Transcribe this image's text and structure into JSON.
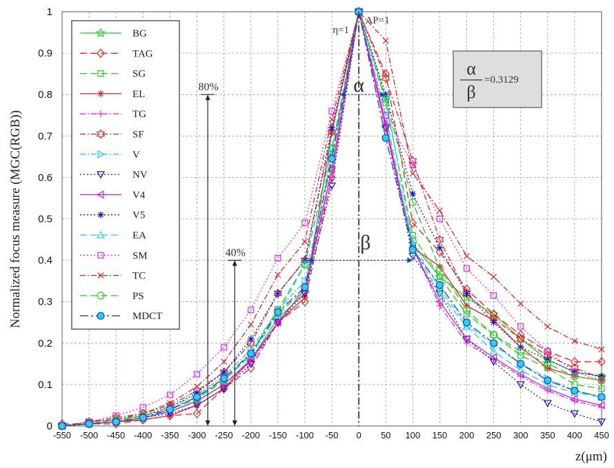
{
  "chart_data": {
    "type": "line",
    "xlabel": "z(μm)",
    "ylabel": "Normalized focus measure (MGC(RGB))",
    "xlim": [
      -550,
      450
    ],
    "ylim": [
      0,
      1
    ],
    "x_ticks": [
      "-550",
      "-500",
      "-450",
      "-400",
      "-350",
      "-300",
      "-250",
      "-200",
      "-150",
      "-100",
      "-50",
      "0",
      "50",
      "100",
      "150",
      "200",
      "250",
      "300",
      "350",
      "400",
      "450"
    ],
    "y_ticks": [
      "0",
      "0.1",
      "0.2",
      "0.3",
      "0.4",
      "0.5",
      "0.6",
      "0.7",
      "0.8",
      "0.9",
      "1"
    ],
    "grid": true,
    "legend_position": "top-left",
    "x": [
      -550,
      -500,
      -450,
      -400,
      -350,
      -300,
      -250,
      -200,
      -150,
      -100,
      -50,
      0,
      50,
      100,
      150,
      200,
      250,
      300,
      350,
      400,
      450
    ],
    "series": [
      {
        "name": "BG",
        "color": "#22cc22",
        "dash": "solid",
        "marker": "star",
        "values": [
          0,
          0.005,
          0.01,
          0.02,
          0.035,
          0.06,
          0.1,
          0.16,
          0.26,
          0.32,
          0.62,
          1,
          0.72,
          0.44,
          0.36,
          0.31,
          0.27,
          0.21,
          0.16,
          0.13,
          0.12
        ]
      },
      {
        "name": "TAG",
        "color": "#ee2222",
        "dash": "10,5",
        "marker": "diamond",
        "values": [
          0.005,
          0.005,
          0.005,
          0.015,
          0.025,
          0.03,
          0.09,
          0.14,
          0.25,
          0.3,
          0.6,
          1,
          0.85,
          0.49,
          0.42,
          0.33,
          0.27,
          0.22,
          0.18,
          0.155,
          0.155
        ]
      },
      {
        "name": "SG",
        "color": "#22cc22",
        "dash": "10,5",
        "marker": "square",
        "values": [
          0,
          0.005,
          0.01,
          0.025,
          0.04,
          0.07,
          0.11,
          0.17,
          0.27,
          0.33,
          0.65,
          1,
          0.78,
          0.46,
          0.36,
          0.27,
          0.22,
          0.17,
          0.14,
          0.1,
          0.09
        ]
      },
      {
        "name": "EL",
        "color": "#dd2222",
        "dash": "solid",
        "marker": "asterisk",
        "values": [
          0,
          0.005,
          0.01,
          0.015,
          0.025,
          0.05,
          0.09,
          0.16,
          0.25,
          0.31,
          0.71,
          1,
          0.73,
          0.43,
          0.385,
          0.29,
          0.255,
          0.19,
          0.14,
          0.12,
          0.11
        ]
      },
      {
        "name": "TG",
        "color": "#ee22ee",
        "dash": "8,3,2,3",
        "marker": "plus",
        "values": [
          0,
          0.005,
          0.01,
          0.02,
          0.035,
          0.06,
          0.1,
          0.155,
          0.25,
          0.33,
          0.6,
          1,
          0.73,
          0.43,
          0.29,
          0.2,
          0.16,
          0.12,
          0.085,
          0.06,
          0.045
        ]
      },
      {
        "name": "SF",
        "color": "#dd2222",
        "dash": "8,3,2,3",
        "marker": "hexagram",
        "values": [
          0,
          0.01,
          0.02,
          0.03,
          0.05,
          0.085,
          0.13,
          0.2,
          0.32,
          0.4,
          0.71,
          1,
          0.84,
          0.64,
          0.45,
          0.32,
          0.26,
          0.21,
          0.17,
          0.14,
          0.115
        ]
      },
      {
        "name": "V",
        "color": "#22ccee",
        "dash": "8,3,2,3",
        "marker": "triangle-right",
        "values": [
          0,
          0.01,
          0.015,
          0.025,
          0.045,
          0.075,
          0.12,
          0.185,
          0.28,
          0.35,
          0.66,
          1,
          0.79,
          0.44,
          0.33,
          0.245,
          0.195,
          0.15,
          0.115,
          0.085,
          0.07
        ]
      },
      {
        "name": "NV",
        "color": "#1111cc",
        "dash": "2,3",
        "marker": "triangle-down",
        "values": [
          0,
          0.005,
          0.01,
          0.02,
          0.03,
          0.05,
          0.09,
          0.15,
          0.25,
          0.32,
          0.58,
          1,
          0.72,
          0.41,
          0.32,
          0.21,
          0.155,
          0.1,
          0.055,
          0.03,
          0.01
        ]
      },
      {
        "name": "V4",
        "color": "#cc22cc",
        "dash": "solid",
        "marker": "triangle-left",
        "values": [
          0,
          0.005,
          0.01,
          0.02,
          0.035,
          0.06,
          0.1,
          0.16,
          0.25,
          0.33,
          0.62,
          1,
          0.72,
          0.43,
          0.3,
          0.21,
          0.165,
          0.125,
          0.09,
          0.065,
          0.05
        ]
      },
      {
        "name": "V5",
        "color": "#1111cc",
        "dash": "2,3",
        "marker": "asterisk",
        "values": [
          0,
          0.01,
          0.015,
          0.025,
          0.045,
          0.08,
          0.13,
          0.21,
          0.32,
          0.4,
          0.72,
          1,
          0.8,
          0.56,
          0.43,
          0.32,
          0.25,
          0.19,
          0.16,
          0.13,
          0.12
        ]
      },
      {
        "name": "EA",
        "color": "#22ccee",
        "dash": "10,5",
        "marker": "triangle-up",
        "values": [
          0,
          0.01,
          0.015,
          0.025,
          0.04,
          0.065,
          0.11,
          0.17,
          0.27,
          0.39,
          0.67,
          1,
          0.75,
          0.43,
          0.32,
          0.24,
          0.18,
          0.135,
          0.1,
          0.08,
          0.07
        ]
      },
      {
        "name": "SM",
        "color": "#ee22ee",
        "dash": "2,3",
        "marker": "square",
        "values": [
          0,
          0.01,
          0.025,
          0.045,
          0.075,
          0.125,
          0.19,
          0.28,
          0.405,
          0.49,
          0.76,
          1,
          0.75,
          0.63,
          0.5,
          0.38,
          0.315,
          0.24,
          0.18,
          0.13,
          0.11
        ]
      },
      {
        "name": "TC",
        "color": "#dd2222",
        "dash": "8,3,2,3",
        "marker": "x",
        "values": [
          0,
          0.01,
          0.015,
          0.03,
          0.055,
          0.095,
          0.155,
          0.245,
          0.365,
          0.445,
          0.74,
          1,
          0.93,
          0.61,
          0.52,
          0.41,
          0.36,
          0.295,
          0.24,
          0.205,
          0.185
        ]
      },
      {
        "name": "PS",
        "color": "#22cc22",
        "dash": "10,5",
        "marker": "circle",
        "values": [
          0,
          0.005,
          0.015,
          0.025,
          0.04,
          0.065,
          0.11,
          0.175,
          0.28,
          0.39,
          0.67,
          1,
          0.79,
          0.54,
          0.38,
          0.28,
          0.22,
          0.18,
          0.15,
          0.12,
          0.11
        ]
      },
      {
        "name": "MDCT",
        "color": "#1144cc",
        "dash": "12,4,3,4",
        "marker": "filled-circle",
        "values": [
          0,
          0.005,
          0.01,
          0.02,
          0.04,
          0.07,
          0.115,
          0.175,
          0.275,
          0.335,
          0.645,
          1,
          0.695,
          0.425,
          0.34,
          0.25,
          0.2,
          0.15,
          0.11,
          0.085,
          0.07
        ]
      }
    ],
    "annotations": {
      "eta": "η=1",
      "ap": "AP=1",
      "alpha": "α",
      "beta": "β",
      "pct80": "80%",
      "pct40": "40%",
      "ratio_num": "α",
      "ratio_den": "β",
      "ratio_value": "=0.3129"
    }
  }
}
